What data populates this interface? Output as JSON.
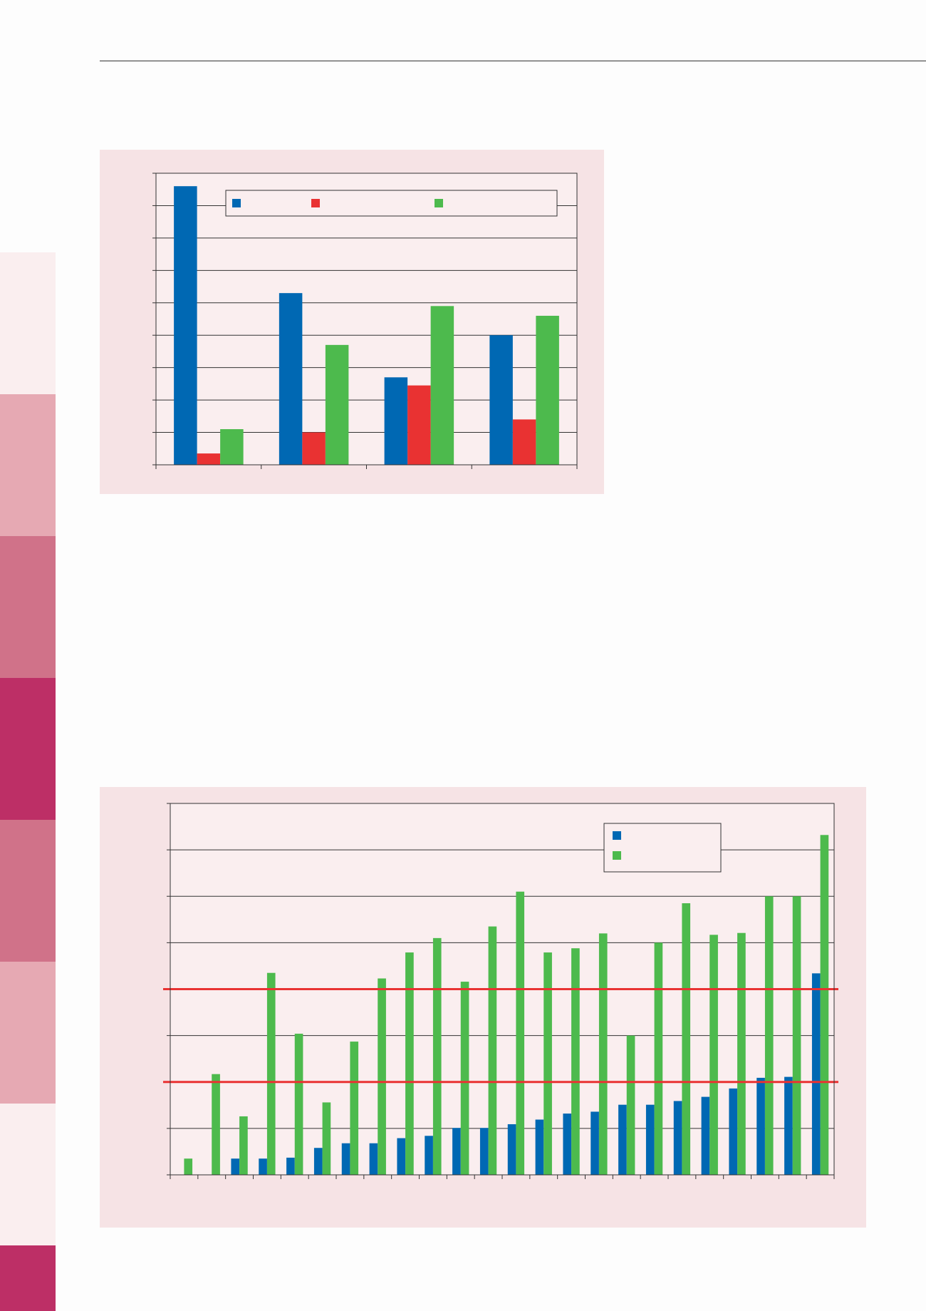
{
  "theme": {
    "panel_bg": "#f6e3e5",
    "plot_bg": "#faeeef",
    "series_colors": [
      "#0068b3",
      "#e93232",
      "#4dba4d"
    ],
    "reference_line_color": "#e93232"
  },
  "sidebar": {
    "colors": [
      "#faeeef",
      "#e6a9b3",
      "#d07289",
      "#bd2f66",
      "#d07289",
      "#e6a9b3",
      "#faeeef"
    ],
    "bottom_color": "#bd2f66"
  },
  "chart_data": [
    {
      "type": "bar",
      "categories": [
        "",
        "",
        "",
        ""
      ],
      "series": [
        {
          "values": [
            8.6,
            5.3,
            2.7,
            4.0
          ]
        },
        {
          "values": [
            0.35,
            1.0,
            2.45,
            1.4
          ]
        },
        {
          "values": [
            1.1,
            3.7,
            4.9,
            4.6
          ]
        }
      ],
      "ylim": [
        0,
        9
      ],
      "grid": true,
      "legend": "top-right"
    },
    {
      "type": "bar",
      "categories": [
        "",
        "",
        "",
        "",
        "",
        "",
        "",
        "",
        "",
        "",
        "",
        "",
        "",
        "",
        "",
        "",
        "",
        "",
        "",
        "",
        "",
        "",
        "",
        ""
      ],
      "series": [
        {
          "values": [
            0,
            0,
            0.35,
            0.35,
            0.37,
            0.58,
            0.68,
            0.68,
            0.79,
            0.84,
            1.01,
            1.01,
            1.09,
            1.19,
            1.32,
            1.36,
            1.51,
            1.51,
            1.59,
            1.68,
            1.86,
            2.09,
            2.11,
            4.34
          ]
        },
        {
          "values": [
            0.35,
            2.17,
            1.26,
            4.35,
            3.04,
            1.56,
            2.87,
            4.23,
            4.79,
            5.1,
            4.16,
            5.35,
            6.1,
            4.79,
            4.88,
            5.2,
            3.0,
            5.0,
            5.85,
            5.17,
            5.21,
            6.0,
            6.0,
            7.32
          ]
        }
      ],
      "reference_lines": [
        2.0,
        4.0
      ],
      "ylim": [
        0,
        8
      ],
      "grid": true,
      "legend": "top-right"
    }
  ]
}
